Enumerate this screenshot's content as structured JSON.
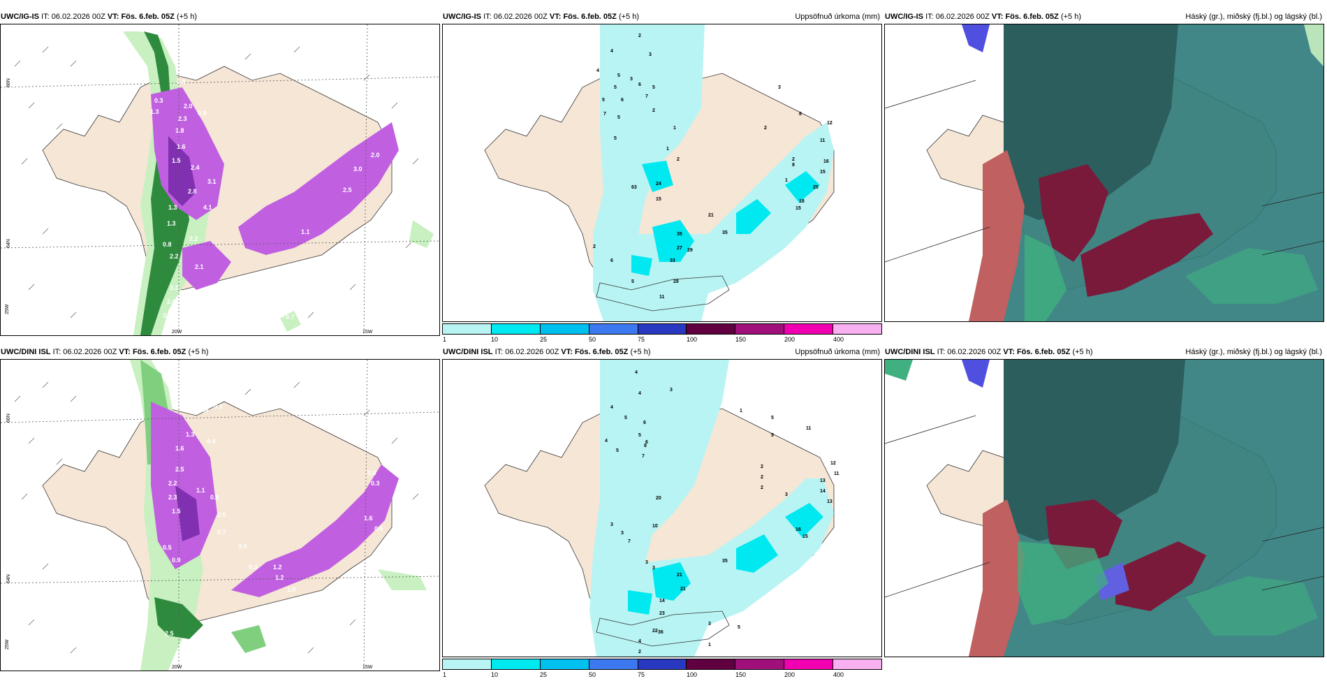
{
  "panels": [
    {
      "model": "UWC/IG-IS",
      "it_label": "IT:",
      "it": "06.02.2026 00Z",
      "vt_label": "VT:",
      "vt": "Fös. 6.feb. 05Z",
      "lead": "(+5 h)",
      "field": ""
    },
    {
      "model": "UWC/IG-IS",
      "it_label": "IT:",
      "it": "06.02.2026 00Z",
      "vt_label": "VT:",
      "vt": "Fös. 6.feb. 05Z",
      "lead": "(+5 h)",
      "field": "Uppsöfnuð úrkoma (mm)"
    },
    {
      "model": "UWC/IG-IS",
      "it_label": "IT:",
      "it": "06.02.2026 00Z",
      "vt_label": "VT:",
      "vt": "Fös. 6.feb. 05Z",
      "lead": "(+5 h)",
      "field": "Háský (gr.), miðský (fj.bl.) og lágský (bl.)"
    },
    {
      "model": "UWC/DINI ISL",
      "it_label": "IT:",
      "it": "06.02.2026 00Z",
      "vt_label": "VT:",
      "vt": "Fös. 6.feb. 05Z",
      "lead": "(+5 h)",
      "field": ""
    },
    {
      "model": "UWC/DINI ISL",
      "it_label": "IT:",
      "it": "06.02.2026 00Z",
      "vt_label": "VT:",
      "vt": "Fös. 6.feb. 05Z",
      "lead": "(+5 h)",
      "field": "Uppsöfnuð úrkoma (mm)"
    },
    {
      "model": "UWC/DINI ISL",
      "it_label": "IT:",
      "it": "06.02.2026 00Z",
      "vt_label": "VT:",
      "vt": "Fös. 6.feb. 05Z",
      "lead": "(+5 h)",
      "field": "Háský (gr.), miðský (fj.bl.) og lágský (bl.)"
    }
  ],
  "grid_labels": {
    "lat66": "66N",
    "lat64": "64N",
    "lon25": "25W",
    "lon20": "20W",
    "lon15": "15W"
  },
  "colorbar": {
    "ticks": [
      "1",
      "10",
      "25",
      "50",
      "75",
      "100",
      "150",
      "200",
      "400"
    ],
    "colors": [
      "#b8f4f4",
      "#00e8f0",
      "#00c0f0",
      "#3c78f0",
      "#2838c0",
      "#600040",
      "#a0107a",
      "#f000b0",
      "#f8b0f0"
    ]
  },
  "snow_labels_top": [
    "0.7",
    "0.7",
    "0.6",
    "0.6",
    "0.8",
    "0.3",
    "2.0",
    "1.3",
    "2.3",
    "0.9",
    "1.8",
    "1.6",
    "1.5",
    "2.4",
    "3.1",
    "2.8",
    "1.3",
    "4.1",
    "1.3",
    "0.8",
    "2.2",
    "2.2",
    "2.1",
    "3.2",
    "2.6",
    "3.1",
    "1.0",
    "1.0",
    "0.7",
    "0.7",
    "1.1",
    "2.5",
    "3.0",
    "2.0"
  ],
  "snow_labels_bottom": [
    "0.4",
    "0.3",
    "1.3",
    "0.4",
    "1.6",
    "2.5",
    "2.2",
    "2.3",
    "1.1",
    "0.9",
    "2.0",
    "1.5",
    "0.5",
    "0.9",
    "0.7",
    "3.0",
    "0.3",
    "1.2",
    "1.2",
    "1.0",
    "0.7",
    "0.7",
    "1.0",
    "2.5",
    "0.5",
    "1.6",
    "0.6",
    "0.3",
    "1.6",
    "0.8"
  ],
  "precip_labels_top": [
    "2",
    "4",
    "3",
    "4",
    "5",
    "3",
    "6",
    "5",
    "5",
    "6",
    "7",
    "5",
    "2",
    "7",
    "5",
    "5",
    "1",
    "3",
    "2",
    "8",
    "12",
    "11",
    "1",
    "2",
    "2",
    "16",
    "8",
    "15",
    "1",
    "25",
    "15",
    "18",
    "24",
    "63",
    "15",
    "21",
    "35",
    "27",
    "35",
    "29",
    "33",
    "28",
    "2",
    "6",
    "5",
    "11"
  ],
  "precip_labels_bottom": [
    "4",
    "4",
    "3",
    "4",
    "5",
    "6",
    "5",
    "6",
    "4",
    "8",
    "5",
    "7",
    "1",
    "5",
    "5",
    "11",
    "2",
    "2",
    "2",
    "3",
    "12",
    "11",
    "13",
    "14",
    "13",
    "20",
    "10",
    "3",
    "3",
    "7",
    "16",
    "15",
    "35",
    "21",
    "21",
    "23",
    "14",
    "36",
    "3",
    "3",
    "22",
    "4",
    "2",
    "1",
    "3",
    "5"
  ],
  "colors": {
    "land": "#f5e6d6",
    "snow_light": "#c8f0c0",
    "snow_mid": "#7fcf7f",
    "snow_dark": "#2e8b3e",
    "snow_magenta": "#c060e0",
    "snow_deep": "#8030b0",
    "precip_light": "#b8f4f4",
    "precip_mid": "#00e8f0",
    "cloud_dark": "#2a5a5a",
    "cloud_teal": "#2e7a7a",
    "cloud_green": "#40b080",
    "cloud_red": "#c06060",
    "cloud_maroon": "#7a1a3a"
  }
}
